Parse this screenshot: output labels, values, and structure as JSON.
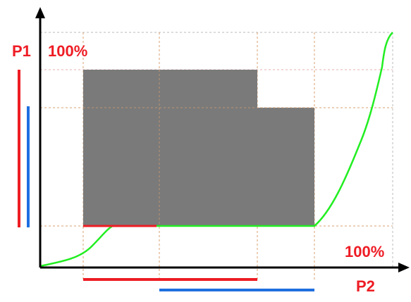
{
  "labels": {
    "p1": "P1",
    "p1_max": "100%",
    "p2": "P2",
    "p2_max": "100%"
  },
  "colors": {
    "axis": "#000000",
    "red": "#ee1c24",
    "blue": "#1f6fe0",
    "green": "#22ee22",
    "block": "#7a7a7a",
    "guide": "#d8a070",
    "label": "#ee1c24"
  }
}
